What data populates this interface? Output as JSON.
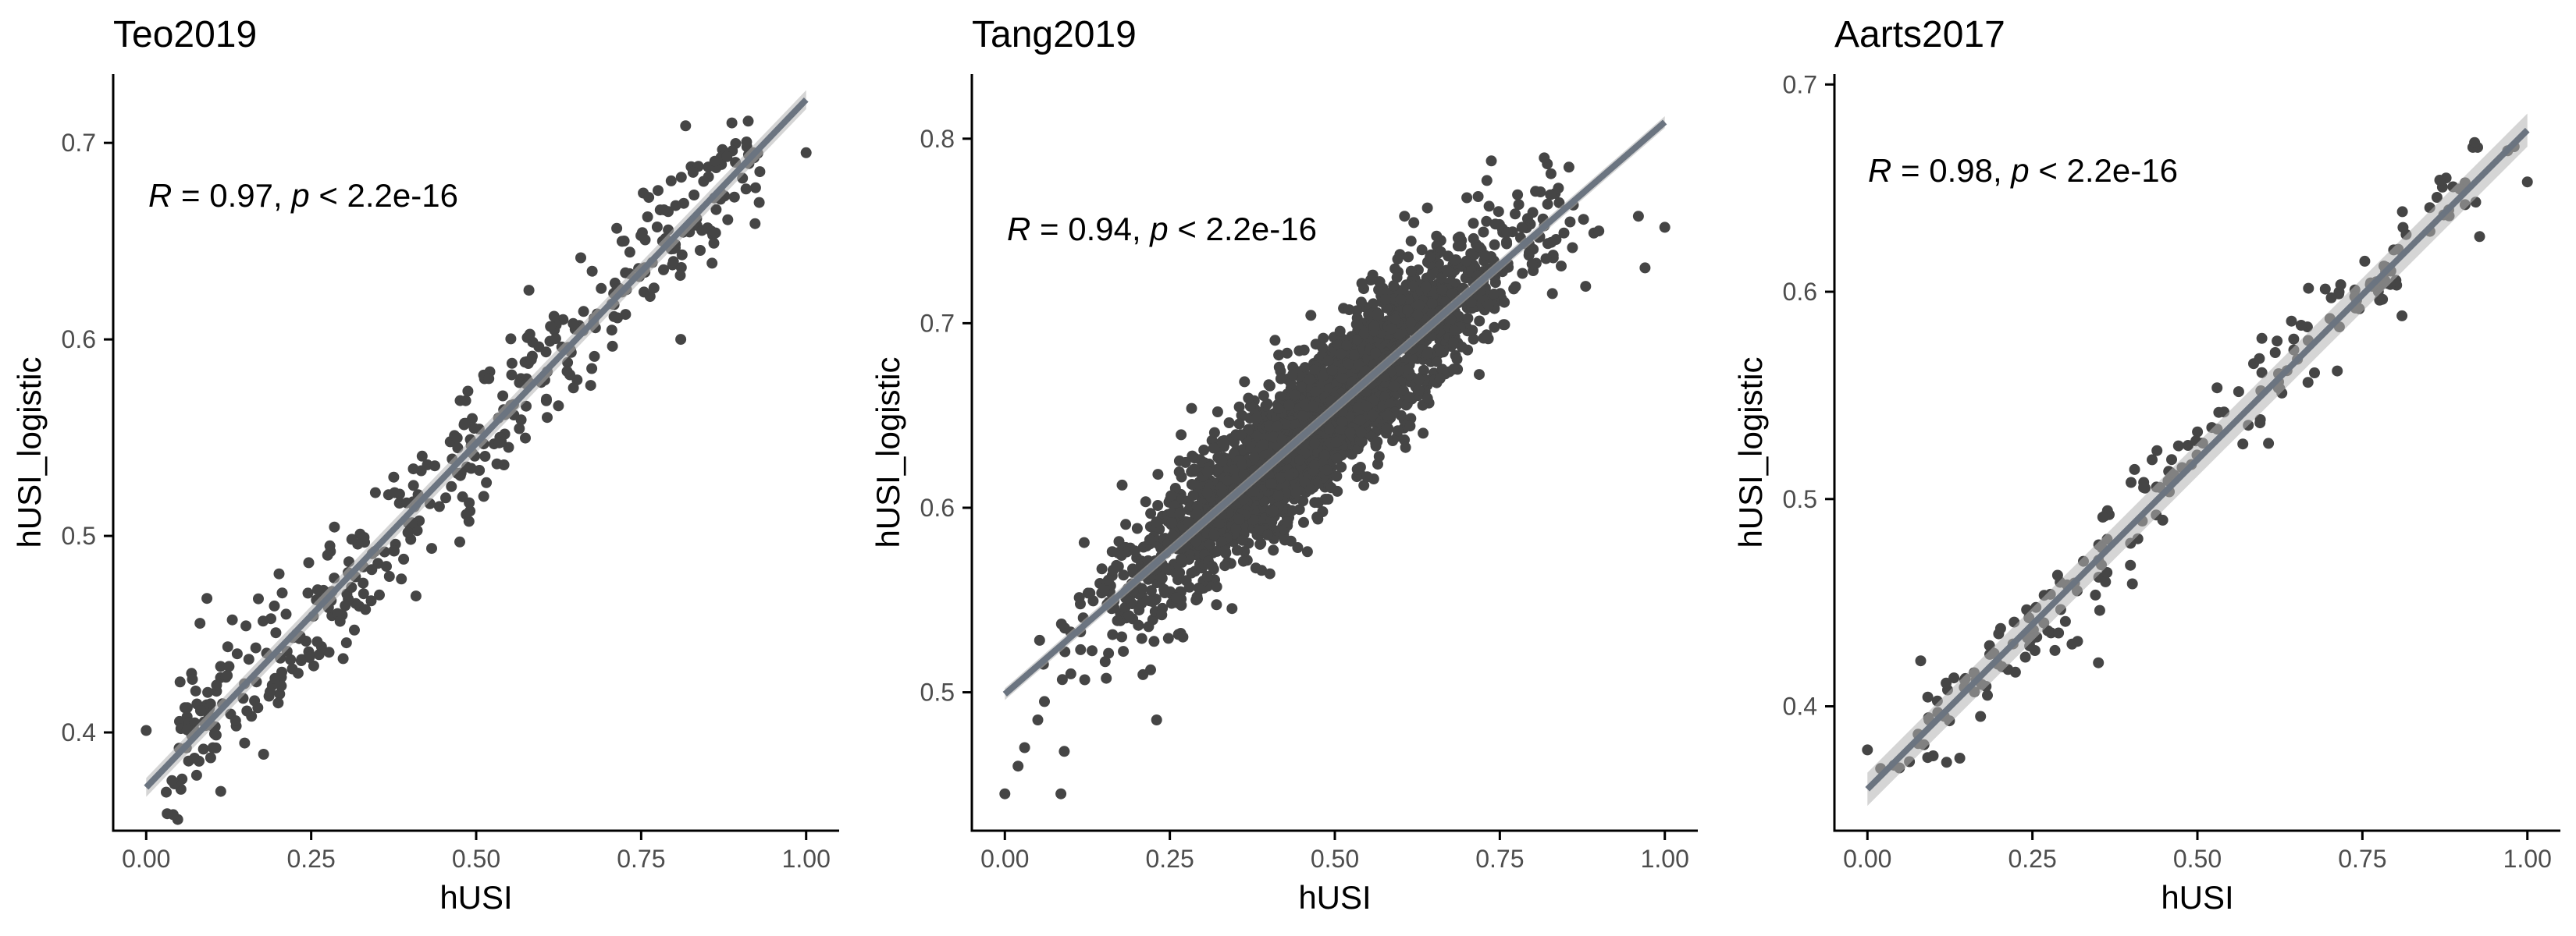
{
  "chart_data": [
    {
      "type": "scatter",
      "title": "Teo2019",
      "xlabel": "hUSI",
      "ylabel": "hUSI_logistic",
      "xlim": [
        -0.05,
        1.05
      ],
      "ylim": [
        0.35,
        0.735
      ],
      "xticks": [
        0.0,
        0.25,
        0.5,
        0.75,
        1.0
      ],
      "xtick_labels": [
        "0.00",
        "0.25",
        "0.50",
        "0.75",
        "1.00"
      ],
      "yticks": [
        0.4,
        0.5,
        0.6,
        0.7
      ],
      "ytick_labels": [
        "0.4",
        "0.5",
        "0.6",
        "0.7"
      ],
      "annotation": {
        "r_symbol": "R",
        "r_text": " = 0.97, ",
        "p_symbol": "p",
        "p_text": " < 2.2e-16"
      },
      "fit": {
        "slope": 0.35,
        "intercept": 0.372,
        "band": 0.003
      },
      "points": {
        "n": 420,
        "x_shape": "uniform",
        "noise": 0.018,
        "seed": 11,
        "extra": [
          [
            0.0,
            0.401
          ],
          [
            0.07,
            0.427
          ],
          [
            1.0,
            0.695
          ],
          [
            0.88,
            0.693
          ],
          [
            0.81,
            0.6
          ],
          [
            0.58,
            0.625
          ],
          [
            0.17,
            0.468
          ],
          [
            0.2,
            0.415
          ]
        ]
      },
      "grid": false,
      "legend": "none"
    },
    {
      "type": "scatter",
      "title": "Tang2019",
      "xlabel": "hUSI",
      "ylabel": "hUSI_logistic",
      "xlim": [
        -0.05,
        1.05
      ],
      "ylim": [
        0.425,
        0.835
      ],
      "xticks": [
        0.0,
        0.25,
        0.5,
        0.75,
        1.0
      ],
      "xtick_labels": [
        "0.00",
        "0.25",
        "0.50",
        "0.75",
        "1.00"
      ],
      "yticks": [
        0.5,
        0.6,
        0.7,
        0.8
      ],
      "ytick_labels": [
        "0.5",
        "0.6",
        "0.7",
        "0.8"
      ],
      "annotation": {
        "r_symbol": "R",
        "r_text": " = 0.94, ",
        "p_symbol": "p",
        "p_text": " < 2.2e-16"
      },
      "fit": {
        "slope": 0.31,
        "intercept": 0.499,
        "band": 0.002
      },
      "points": {
        "n": 2600,
        "x_shape": "center",
        "noise": 0.02,
        "seed": 23,
        "extra": [
          [
            0.0,
            0.445
          ],
          [
            0.02,
            0.46
          ],
          [
            0.03,
            0.47
          ],
          [
            0.09,
            0.468
          ],
          [
            0.085,
            0.445
          ],
          [
            0.23,
            0.485
          ],
          [
            0.05,
            0.485
          ],
          [
            0.06,
            0.495
          ],
          [
            0.1,
            0.51
          ],
          [
            1.0,
            0.752
          ],
          [
            0.96,
            0.758
          ],
          [
            0.9,
            0.75
          ],
          [
            0.82,
            0.735
          ],
          [
            0.88,
            0.72
          ],
          [
            0.8,
            0.76
          ],
          [
            0.97,
            0.73
          ],
          [
            0.7,
            0.768
          ],
          [
            0.58,
            0.65
          ]
        ]
      },
      "grid": false,
      "legend": "none"
    },
    {
      "type": "scatter",
      "title": "Aarts2017",
      "xlabel": "hUSI",
      "ylabel": "hUSI_logistic",
      "xlim": [
        -0.05,
        1.05
      ],
      "ylim": [
        0.34,
        0.705
      ],
      "xticks": [
        0.0,
        0.25,
        0.5,
        0.75,
        1.0
      ],
      "xtick_labels": [
        "0.00",
        "0.25",
        "0.50",
        "0.75",
        "1.00"
      ],
      "yticks": [
        0.4,
        0.5,
        0.6,
        0.7
      ],
      "ytick_labels": [
        "0.4",
        "0.5",
        "0.6",
        "0.7"
      ],
      "annotation": {
        "r_symbol": "R",
        "r_text": " = 0.98, ",
        "p_symbol": "p",
        "p_text": " < 2.2e-16"
      },
      "fit": {
        "slope": 0.318,
        "intercept": 0.36,
        "band": 0.005
      },
      "points": {
        "n": 200,
        "x_shape": "uniform",
        "noise": 0.012,
        "seed": 37,
        "extra": [
          [
            0.0,
            0.379
          ],
          [
            0.02,
            0.37
          ],
          [
            0.12,
            0.373
          ],
          [
            0.14,
            0.375
          ],
          [
            0.35,
            0.421
          ],
          [
            0.31,
            0.43
          ],
          [
            1.0,
            0.653
          ],
          [
            0.98,
            0.67
          ],
          [
            0.97,
            0.668
          ],
          [
            0.92,
            0.672
          ]
        ]
      },
      "grid": false,
      "legend": "none"
    }
  ]
}
